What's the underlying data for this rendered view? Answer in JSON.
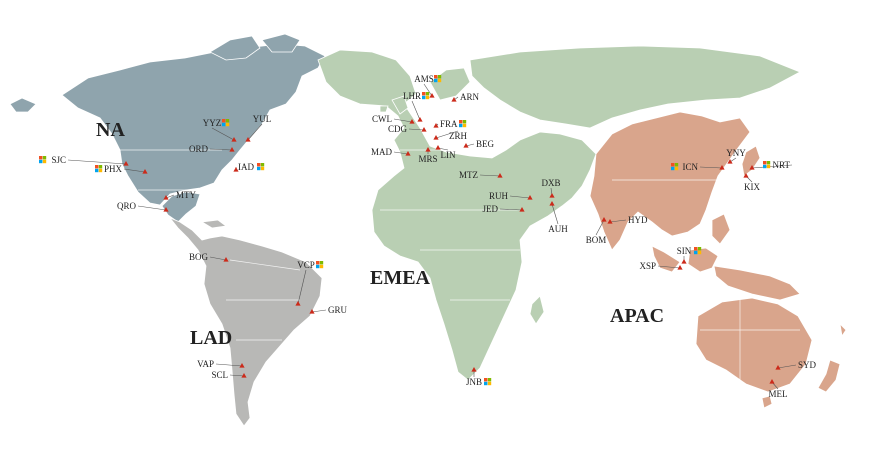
{
  "regions": [
    {
      "code": "NA",
      "color": "#8fa4ad"
    },
    {
      "code": "LAD",
      "color": "#b8b8b6"
    },
    {
      "code": "EMEA",
      "color": "#b9cfb3"
    },
    {
      "code": "APAC",
      "color": "#d9a58c"
    }
  ],
  "colors": {
    "border": "#ffffff",
    "marker": "#cc2a1a",
    "leader": "#555555",
    "text": "#222222",
    "ms_logo": [
      "#f25022",
      "#7fba00",
      "#00a4ef",
      "#ffb900"
    ]
  },
  "sites": [
    {
      "code": "SJC",
      "ms_logo": true
    },
    {
      "code": "PHX",
      "ms_logo": true
    },
    {
      "code": "YYZ",
      "ms_logo": true
    },
    {
      "code": "YUL",
      "ms_logo": false
    },
    {
      "code": "ORD",
      "ms_logo": false
    },
    {
      "code": "IAD",
      "ms_logo": true
    },
    {
      "code": "MTY",
      "ms_logo": false
    },
    {
      "code": "QRO",
      "ms_logo": false
    },
    {
      "code": "BOG",
      "ms_logo": false
    },
    {
      "code": "VCP",
      "ms_logo": true
    },
    {
      "code": "GRU",
      "ms_logo": false
    },
    {
      "code": "VAP",
      "ms_logo": false
    },
    {
      "code": "SCL",
      "ms_logo": false
    },
    {
      "code": "AMS",
      "ms_logo": true
    },
    {
      "code": "LHR",
      "ms_logo": true
    },
    {
      "code": "ARN",
      "ms_logo": false
    },
    {
      "code": "CWL",
      "ms_logo": false
    },
    {
      "code": "CDG",
      "ms_logo": false
    },
    {
      "code": "FRA",
      "ms_logo": true
    },
    {
      "code": "ZRH",
      "ms_logo": false
    },
    {
      "code": "BEG",
      "ms_logo": false
    },
    {
      "code": "MAD",
      "ms_logo": false
    },
    {
      "code": "MRS",
      "ms_logo": false
    },
    {
      "code": "LIN",
      "ms_logo": false
    },
    {
      "code": "MTZ",
      "ms_logo": false
    },
    {
      "code": "RUH",
      "ms_logo": false
    },
    {
      "code": "JED",
      "ms_logo": false
    },
    {
      "code": "DXB",
      "ms_logo": false
    },
    {
      "code": "AUH",
      "ms_logo": false
    },
    {
      "code": "JNB",
      "ms_logo": true
    },
    {
      "code": "ICN",
      "ms_logo": true
    },
    {
      "code": "YNY",
      "ms_logo": false
    },
    {
      "code": "NRT",
      "ms_logo": true
    },
    {
      "code": "KIX",
      "ms_logo": false
    },
    {
      "code": "HYD",
      "ms_logo": false
    },
    {
      "code": "BOM",
      "ms_logo": false
    },
    {
      "code": "SIN",
      "ms_logo": true
    },
    {
      "code": "XSP",
      "ms_logo": false
    },
    {
      "code": "SYD",
      "ms_logo": false
    },
    {
      "code": "MEL",
      "ms_logo": false
    }
  ]
}
